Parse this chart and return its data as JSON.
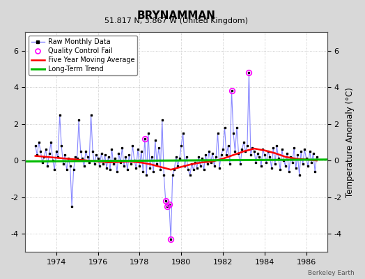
{
  "title": "BRYNAMMAN",
  "subtitle": "51.817 N, 3.867 W (United Kingdom)",
  "ylabel": "Temperature Anomaly (°C)",
  "watermark": "Berkeley Earth",
  "xlim": [
    1972.5,
    1987.0
  ],
  "ylim": [
    -5.0,
    7.0
  ],
  "yticks": [
    -4,
    -2,
    0,
    2,
    4,
    6
  ],
  "xticks": [
    1974,
    1976,
    1978,
    1980,
    1982,
    1984,
    1986
  ],
  "bg_color": "#d8d8d8",
  "plot_bg_color": "#ffffff",
  "raw_line_color": "#8888ff",
  "raw_dot_color": "#000000",
  "ma_color": "#ff0000",
  "trend_color": "#00bb00",
  "qc_color": "#ff00ff",
  "raw_monthly": [
    [
      1973.0,
      0.8
    ],
    [
      1973.083,
      0.3
    ],
    [
      1973.167,
      1.0
    ],
    [
      1973.25,
      0.5
    ],
    [
      1973.333,
      -0.1
    ],
    [
      1973.417,
      0.2
    ],
    [
      1973.5,
      0.6
    ],
    [
      1973.583,
      -0.3
    ],
    [
      1973.667,
      0.4
    ],
    [
      1973.75,
      1.0
    ],
    [
      1973.833,
      0.0
    ],
    [
      1973.917,
      -0.5
    ],
    [
      1974.0,
      0.5
    ],
    [
      1974.083,
      0.2
    ],
    [
      1974.167,
      2.5
    ],
    [
      1974.25,
      0.8
    ],
    [
      1974.333,
      -0.2
    ],
    [
      1974.417,
      0.3
    ],
    [
      1974.5,
      -0.5
    ],
    [
      1974.583,
      0.1
    ],
    [
      1974.667,
      -0.3
    ],
    [
      1974.75,
      -2.5
    ],
    [
      1974.833,
      -0.5
    ],
    [
      1974.917,
      0.2
    ],
    [
      1975.0,
      0.1
    ],
    [
      1975.083,
      2.2
    ],
    [
      1975.167,
      0.5
    ],
    [
      1975.25,
      0.1
    ],
    [
      1975.333,
      -0.3
    ],
    [
      1975.417,
      0.5
    ],
    [
      1975.5,
      0.2
    ],
    [
      1975.583,
      -0.1
    ],
    [
      1975.667,
      2.5
    ],
    [
      1975.75,
      0.5
    ],
    [
      1975.833,
      -0.2
    ],
    [
      1975.917,
      0.3
    ],
    [
      1976.0,
      0.1
    ],
    [
      1976.083,
      -0.3
    ],
    [
      1976.167,
      0.4
    ],
    [
      1976.25,
      -0.2
    ],
    [
      1976.333,
      0.3
    ],
    [
      1976.417,
      -0.4
    ],
    [
      1976.5,
      0.2
    ],
    [
      1976.583,
      -0.5
    ],
    [
      1976.667,
      0.6
    ],
    [
      1976.75,
      -0.2
    ],
    [
      1976.833,
      0.1
    ],
    [
      1976.917,
      -0.6
    ],
    [
      1977.0,
      0.4
    ],
    [
      1977.083,
      -0.1
    ],
    [
      1977.167,
      0.7
    ],
    [
      1977.25,
      -0.3
    ],
    [
      1977.333,
      0.2
    ],
    [
      1977.417,
      -0.5
    ],
    [
      1977.5,
      0.3
    ],
    [
      1977.583,
      -0.2
    ],
    [
      1977.667,
      0.8
    ],
    [
      1977.75,
      0.0
    ],
    [
      1977.833,
      -0.4
    ],
    [
      1977.917,
      0.6
    ],
    [
      1978.0,
      -0.3
    ],
    [
      1978.083,
      0.5
    ],
    [
      1978.167,
      -0.6
    ],
    [
      1978.25,
      1.2
    ],
    [
      1978.333,
      -0.8
    ],
    [
      1978.417,
      1.5
    ],
    [
      1978.5,
      -0.4
    ],
    [
      1978.583,
      0.2
    ],
    [
      1978.667,
      -0.6
    ],
    [
      1978.75,
      1.1
    ],
    [
      1978.833,
      -0.2
    ],
    [
      1978.917,
      0.7
    ],
    [
      1979.0,
      -0.5
    ],
    [
      1979.083,
      2.2
    ],
    [
      1979.167,
      -0.8
    ],
    [
      1979.25,
      -2.2
    ],
    [
      1979.333,
      -2.5
    ],
    [
      1979.417,
      -2.4
    ],
    [
      1979.5,
      -4.3
    ],
    [
      1979.583,
      -0.8
    ],
    [
      1979.667,
      -0.5
    ],
    [
      1979.75,
      0.2
    ],
    [
      1979.833,
      -0.3
    ],
    [
      1979.917,
      0.1
    ],
    [
      1980.0,
      0.8
    ],
    [
      1980.083,
      1.5
    ],
    [
      1980.167,
      -0.3
    ],
    [
      1980.25,
      0.2
    ],
    [
      1980.333,
      -0.5
    ],
    [
      1980.417,
      -0.8
    ],
    [
      1980.5,
      -0.2
    ],
    [
      1980.583,
      -0.5
    ],
    [
      1980.667,
      -0.1
    ],
    [
      1980.75,
      -0.4
    ],
    [
      1980.833,
      0.2
    ],
    [
      1980.917,
      -0.3
    ],
    [
      1981.0,
      0.1
    ],
    [
      1981.083,
      -0.5
    ],
    [
      1981.167,
      0.3
    ],
    [
      1981.25,
      -0.2
    ],
    [
      1981.333,
      0.5
    ],
    [
      1981.417,
      -0.1
    ],
    [
      1981.5,
      0.4
    ],
    [
      1981.583,
      -0.3
    ],
    [
      1981.667,
      0.2
    ],
    [
      1981.75,
      1.5
    ],
    [
      1981.833,
      -0.4
    ],
    [
      1981.917,
      0.3
    ],
    [
      1982.0,
      0.6
    ],
    [
      1982.083,
      1.8
    ],
    [
      1982.167,
      0.3
    ],
    [
      1982.25,
      0.8
    ],
    [
      1982.333,
      -0.2
    ],
    [
      1982.417,
      3.8
    ],
    [
      1982.5,
      1.5
    ],
    [
      1982.583,
      0.5
    ],
    [
      1982.667,
      1.8
    ],
    [
      1982.75,
      0.4
    ],
    [
      1982.833,
      -0.2
    ],
    [
      1982.917,
      0.6
    ],
    [
      1983.0,
      1.0
    ],
    [
      1983.083,
      0.5
    ],
    [
      1983.167,
      0.8
    ],
    [
      1983.25,
      4.8
    ],
    [
      1983.333,
      0.3
    ],
    [
      1983.417,
      0.7
    ],
    [
      1983.5,
      0.5
    ],
    [
      1983.583,
      -0.1
    ],
    [
      1983.667,
      0.4
    ],
    [
      1983.75,
      0.2
    ],
    [
      1983.833,
      -0.3
    ],
    [
      1983.917,
      0.6
    ],
    [
      1984.0,
      0.3
    ],
    [
      1984.083,
      -0.1
    ],
    [
      1984.167,
      0.5
    ],
    [
      1984.25,
      0.2
    ],
    [
      1984.333,
      -0.4
    ],
    [
      1984.417,
      0.7
    ],
    [
      1984.5,
      -0.2
    ],
    [
      1984.583,
      0.8
    ],
    [
      1984.667,
      0.1
    ],
    [
      1984.75,
      -0.5
    ],
    [
      1984.833,
      0.6
    ],
    [
      1984.917,
      0.0
    ],
    [
      1985.0,
      -0.3
    ],
    [
      1985.083,
      0.4
    ],
    [
      1985.167,
      -0.6
    ],
    [
      1985.25,
      0.2
    ],
    [
      1985.333,
      -0.1
    ],
    [
      1985.417,
      0.7
    ],
    [
      1985.5,
      -0.4
    ],
    [
      1985.583,
      0.3
    ],
    [
      1985.667,
      -0.8
    ],
    [
      1985.75,
      0.5
    ],
    [
      1985.833,
      -0.2
    ],
    [
      1985.917,
      0.6
    ],
    [
      1986.0,
      0.1
    ],
    [
      1986.083,
      -0.3
    ],
    [
      1986.167,
      0.5
    ],
    [
      1986.25,
      -0.1
    ],
    [
      1986.333,
      0.4
    ],
    [
      1986.417,
      -0.6
    ],
    [
      1986.5,
      0.2
    ]
  ],
  "qc_fail": [
    [
      1978.25,
      1.2
    ],
    [
      1979.25,
      -2.2
    ],
    [
      1979.333,
      -2.5
    ],
    [
      1979.417,
      -2.4
    ],
    [
      1979.5,
      -4.3
    ],
    [
      1982.417,
      3.8
    ],
    [
      1983.25,
      4.8
    ]
  ],
  "moving_avg": [
    [
      1973.0,
      0.25
    ],
    [
      1973.5,
      0.2
    ],
    [
      1974.0,
      0.15
    ],
    [
      1974.5,
      0.1
    ],
    [
      1975.0,
      0.05
    ],
    [
      1975.5,
      0.0
    ],
    [
      1976.0,
      -0.05
    ],
    [
      1976.5,
      -0.1
    ],
    [
      1977.0,
      -0.08
    ],
    [
      1977.5,
      -0.05
    ],
    [
      1978.0,
      -0.1
    ],
    [
      1978.5,
      -0.2
    ],
    [
      1979.0,
      -0.35
    ],
    [
      1979.5,
      -0.5
    ],
    [
      1980.0,
      -0.35
    ],
    [
      1980.5,
      -0.2
    ],
    [
      1981.0,
      -0.1
    ],
    [
      1981.5,
      -0.05
    ],
    [
      1982.0,
      0.1
    ],
    [
      1982.5,
      0.3
    ],
    [
      1983.0,
      0.5
    ],
    [
      1983.5,
      0.65
    ],
    [
      1984.0,
      0.55
    ],
    [
      1984.5,
      0.4
    ],
    [
      1985.0,
      0.2
    ],
    [
      1985.5,
      0.1
    ],
    [
      1986.0,
      0.05
    ],
    [
      1986.5,
      0.0
    ]
  ],
  "trend_x": [
    1972.5,
    1987.0
  ],
  "trend_y": [
    -0.05,
    0.05
  ]
}
